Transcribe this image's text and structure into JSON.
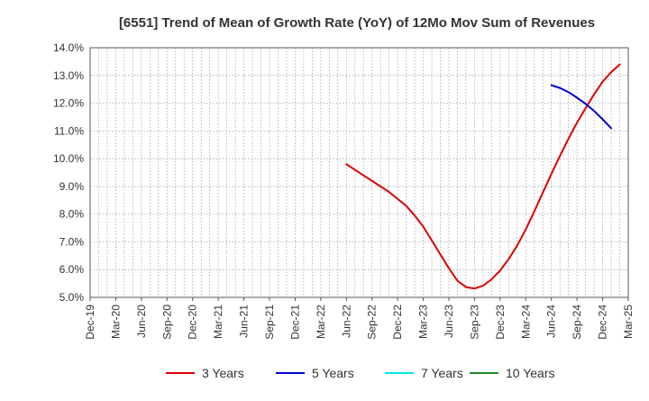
{
  "chart_data": {
    "type": "line",
    "title": "[6551]  Trend of Mean of Growth Rate (YoY) of 12Mo Mov Sum of Revenues",
    "xlabel": "",
    "ylabel": "",
    "ylim": [
      5.0,
      14.0
    ],
    "y_ticks": [
      "5.0%",
      "6.0%",
      "7.0%",
      "8.0%",
      "9.0%",
      "10.0%",
      "11.0%",
      "12.0%",
      "13.0%",
      "14.0%"
    ],
    "x_ticks": [
      "Dec-19",
      "Mar-20",
      "Jun-20",
      "Sep-20",
      "Dec-20",
      "Mar-21",
      "Jun-21",
      "Sep-21",
      "Dec-21",
      "Mar-22",
      "Jun-22",
      "Sep-22",
      "Dec-22",
      "Mar-23",
      "Jun-23",
      "Sep-23",
      "Dec-23",
      "Mar-24",
      "Jun-24",
      "Sep-24",
      "Dec-24",
      "Mar-25"
    ],
    "grid": true,
    "legend_position": "bottom",
    "series": [
      {
        "name": "3 Years",
        "color": "#dd0000",
        "start_month_index": 30,
        "values": [
          9.8,
          9.6,
          9.4,
          9.2,
          9.0,
          8.8,
          8.55,
          8.3,
          7.95,
          7.55,
          7.05,
          6.55,
          6.05,
          5.6,
          5.37,
          5.32,
          5.42,
          5.65,
          5.97,
          6.38,
          6.87,
          7.45,
          8.1,
          8.78,
          9.45,
          10.1,
          10.72,
          11.3,
          11.82,
          12.32,
          12.78,
          13.12,
          13.4
        ]
      },
      {
        "name": "5 Years",
        "color": "#0000cc",
        "start_month_index": 54,
        "values": [
          12.65,
          12.55,
          12.4,
          12.2,
          11.98,
          11.72,
          11.42,
          11.1
        ]
      },
      {
        "name": "7 Years",
        "color": "#00e5ee",
        "start_month_index": null,
        "values": []
      },
      {
        "name": "10 Years",
        "color": "#228b22",
        "start_month_index": null,
        "values": []
      }
    ]
  }
}
